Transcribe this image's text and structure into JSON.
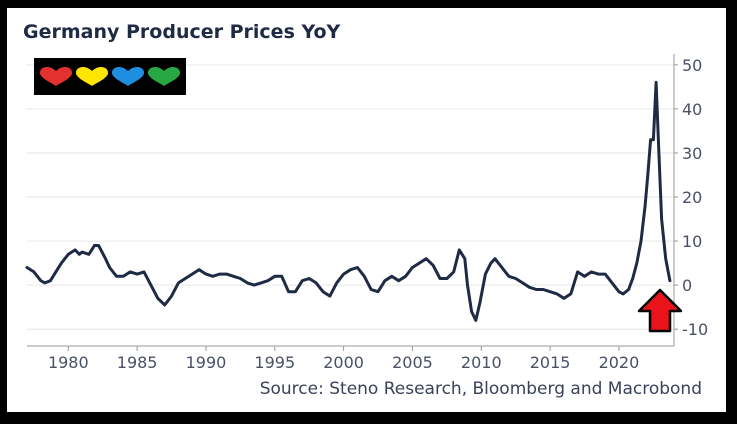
{
  "chart_data": {
    "type": "line",
    "title": "Germany Producer Prices YoY",
    "source": "Source: Steno Research, Bloomberg and Macrobond",
    "xlabel": "",
    "ylabel": "",
    "xlim": [
      1977,
      2024
    ],
    "ylim": [
      -12,
      52
    ],
    "x_ticks": [
      "1980",
      "1985",
      "1990",
      "1995",
      "2000",
      "2005",
      "2010",
      "2015",
      "2020"
    ],
    "y_ticks": [
      "50",
      "40",
      "30",
      "20",
      "10",
      "0",
      "-10"
    ],
    "grid": true,
    "y_axis_side": "right",
    "line_color": "#1f2a44",
    "series": [
      {
        "x": [
          1977.0,
          1977.5,
          1978.0,
          1978.3,
          1978.7,
          1979.0,
          1979.5,
          1980.0,
          1980.5,
          1980.8,
          1981.0,
          1981.5,
          1981.9,
          1982.2,
          1982.7,
          1983.0,
          1983.5,
          1984.0,
          1984.5,
          1985.0,
          1985.5,
          1986.0,
          1986.5,
          1987.0,
          1987.5,
          1988.0,
          1988.5,
          1989.0,
          1989.5,
          1990.0,
          1990.5,
          1991.0,
          1991.5,
          1992.0,
          1992.5,
          1993.0,
          1993.5,
          1994.0,
          1994.5,
          1995.0,
          1995.5,
          1996.0,
          1996.5,
          1997.0,
          1997.5,
          1998.0,
          1998.5,
          1999.0,
          1999.5,
          2000.0,
          2000.5,
          2001.0,
          2001.5,
          2002.0,
          2002.5,
          2003.0,
          2003.5,
          2004.0,
          2004.5,
          2005.0,
          2005.5,
          2006.0,
          2006.5,
          2007.0,
          2007.5,
          2008.0,
          2008.4,
          2008.8,
          2009.0,
          2009.3,
          2009.6,
          2009.9,
          2010.3,
          2010.7,
          2011.0,
          2011.5,
          2012.0,
          2012.5,
          2013.0,
          2013.5,
          2014.0,
          2014.5,
          2015.0,
          2015.5,
          2016.0,
          2016.5,
          2017.0,
          2017.5,
          2018.0,
          2018.5,
          2019.0,
          2019.5,
          2020.0,
          2020.3,
          2020.7,
          2021.0,
          2021.3,
          2021.6,
          2021.9,
          2022.1,
          2022.3,
          2022.5,
          2022.7,
          2022.9,
          2023.1,
          2023.4,
          2023.7
        ],
        "y": [
          4.0,
          3.0,
          1.0,
          0.5,
          1.0,
          2.5,
          5.0,
          7.0,
          8.0,
          7.0,
          7.5,
          7.0,
          9.0,
          9.0,
          6.0,
          4.0,
          2.0,
          2.0,
          3.0,
          2.5,
          3.0,
          0.0,
          -3.0,
          -4.5,
          -2.5,
          0.5,
          1.5,
          2.5,
          3.5,
          2.5,
          2.0,
          2.5,
          2.5,
          2.0,
          1.5,
          0.5,
          0.0,
          0.5,
          1.0,
          2.0,
          2.0,
          -1.5,
          -1.5,
          1.0,
          1.5,
          0.5,
          -1.5,
          -2.5,
          0.5,
          2.5,
          3.5,
          4.0,
          2.0,
          -1.0,
          -1.5,
          1.0,
          2.0,
          1.0,
          2.0,
          4.0,
          5.0,
          6.0,
          4.5,
          1.5,
          1.5,
          3.0,
          8.0,
          6.0,
          0.0,
          -6.0,
          -8.0,
          -4.0,
          2.5,
          5.0,
          6.0,
          4.0,
          2.0,
          1.5,
          0.5,
          -0.5,
          -1.0,
          -1.0,
          -1.5,
          -2.0,
          -3.0,
          -2.0,
          3.0,
          2.0,
          3.0,
          2.5,
          2.5,
          0.5,
          -1.5,
          -2.0,
          -1.0,
          1.5,
          5.0,
          10.0,
          18.0,
          25.0,
          33.0,
          33.0,
          46.0,
          30.0,
          15.0,
          6.0,
          1.0
        ]
      }
    ]
  },
  "logo": {
    "name": "heart-logo",
    "hearts": [
      "#e53030",
      "#ffe600",
      "#1e8fe0",
      "#27a845"
    ]
  },
  "arrow": {
    "color": "#e8141a"
  }
}
